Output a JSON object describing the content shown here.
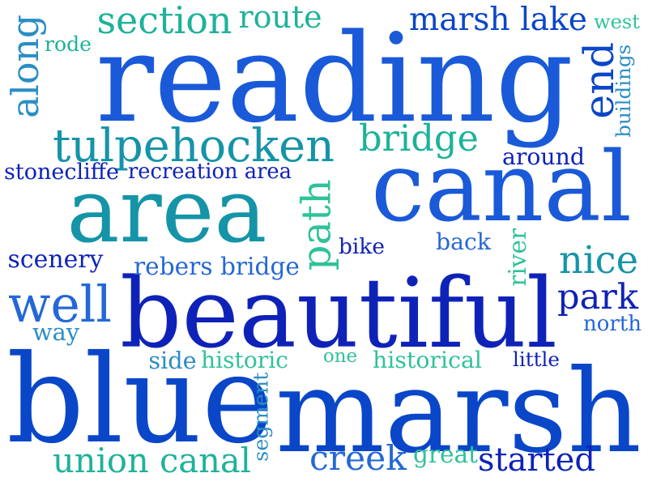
{
  "colors": {
    "blue": "#0a46c8",
    "royal": "#1a5ad8",
    "navy": "#0f22b8",
    "teal": "#1594a8",
    "sea": "#1fb29a",
    "mint": "#2fc29a",
    "cyan": "#2a8ec4",
    "mid": "#2468d6"
  },
  "words": [
    {
      "id": "reading",
      "text": "reading",
      "color": "royal"
    },
    {
      "id": "blue",
      "text": "blue",
      "color": "blue"
    },
    {
      "id": "marsh",
      "text": "marsh",
      "color": "blue"
    },
    {
      "id": "beautiful",
      "text": "beautiful",
      "color": "navy"
    },
    {
      "id": "canal",
      "text": "canal",
      "color": "royal"
    },
    {
      "id": "area",
      "text": "area",
      "color": "teal"
    },
    {
      "id": "tulpehocken",
      "text": "tulpehocken",
      "color": "teal"
    },
    {
      "id": "section",
      "text": "section",
      "color": "sea"
    },
    {
      "id": "route",
      "text": "route",
      "color": "sea"
    },
    {
      "id": "marsh-lake",
      "text": "marsh lake",
      "color": "blue"
    },
    {
      "id": "west",
      "text": "west",
      "color": "mint"
    },
    {
      "id": "along",
      "text": "along",
      "color": "cyan"
    },
    {
      "id": "rode",
      "text": "rode",
      "color": "sea"
    },
    {
      "id": "end",
      "text": "end",
      "color": "blue"
    },
    {
      "id": "buildings",
      "text": "buildings",
      "color": "cyan"
    },
    {
      "id": "bridge",
      "text": "bridge",
      "color": "sea"
    },
    {
      "id": "around",
      "text": "around",
      "color": "navy"
    },
    {
      "id": "stonecliffe",
      "text": "stonecliffe",
      "color": "navy"
    },
    {
      "id": "recreation-area",
      "text": "recreation area",
      "color": "navy"
    },
    {
      "id": "path",
      "text": "path",
      "color": "mint"
    },
    {
      "id": "bike",
      "text": "bike",
      "color": "navy"
    },
    {
      "id": "back",
      "text": "back",
      "color": "mid"
    },
    {
      "id": "river",
      "text": "river",
      "color": "mint"
    },
    {
      "id": "nice",
      "text": "nice",
      "color": "teal"
    },
    {
      "id": "scenery",
      "text": "scenery",
      "color": "navy"
    },
    {
      "id": "rebers-bridge",
      "text": "rebers bridge",
      "color": "mid"
    },
    {
      "id": "well",
      "text": "well",
      "color": "mid"
    },
    {
      "id": "park",
      "text": "park",
      "color": "navy"
    },
    {
      "id": "way",
      "text": "way",
      "color": "cyan"
    },
    {
      "id": "north",
      "text": "north",
      "color": "mid"
    },
    {
      "id": "side",
      "text": "side",
      "color": "cyan"
    },
    {
      "id": "historic",
      "text": "historic",
      "color": "mint"
    },
    {
      "id": "one",
      "text": "one",
      "color": "mint"
    },
    {
      "id": "historical",
      "text": "historical",
      "color": "mint"
    },
    {
      "id": "little",
      "text": "little",
      "color": "navy"
    },
    {
      "id": "segment",
      "text": "segment",
      "color": "cyan"
    },
    {
      "id": "great",
      "text": "great",
      "color": "mint"
    },
    {
      "id": "union-canal",
      "text": "union canal",
      "color": "sea"
    },
    {
      "id": "creek",
      "text": "creek",
      "color": "mid"
    },
    {
      "id": "started",
      "text": "started",
      "color": "navy"
    }
  ]
}
